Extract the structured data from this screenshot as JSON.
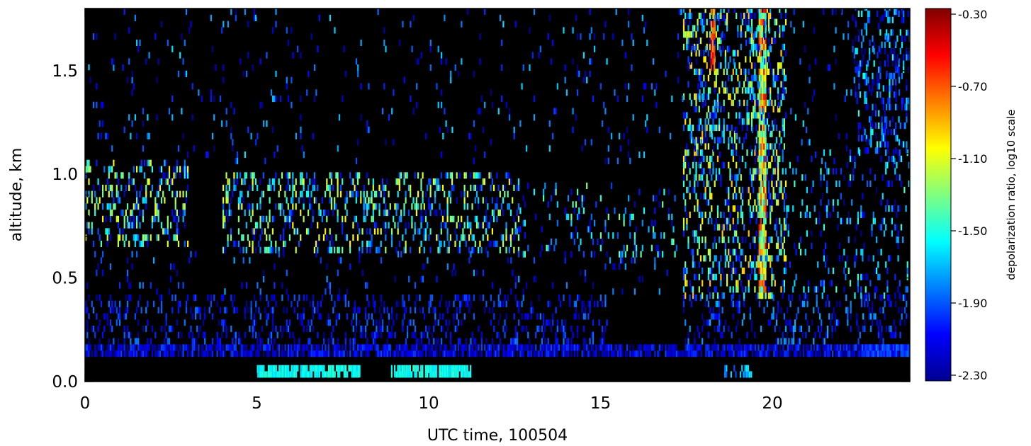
{
  "chart_data": {
    "type": "heatmap",
    "title": "",
    "xlabel": "UTC time, 100504",
    "ylabel": "altitude, km",
    "xlim": [
      0,
      24
    ],
    "ylim": [
      0,
      1.8
    ],
    "x_ticks": [
      0,
      5,
      10,
      15,
      20
    ],
    "x_tick_labels": [
      "0",
      "5",
      "10",
      "15",
      "20"
    ],
    "y_ticks": [
      0.0,
      0.5,
      1.0,
      1.5
    ],
    "y_tick_labels": [
      "0.0",
      "0.5",
      "1.0",
      "1.5"
    ],
    "colorbar": {
      "label": "depolarization ratio, log10 scale",
      "scale": "log10",
      "range": [
        -2.3,
        -0.3
      ],
      "ticks": [
        -0.3,
        -0.7,
        -1.1,
        -1.5,
        -1.9,
        -2.3
      ],
      "tick_labels": [
        "-0.30",
        "-0.70",
        "-1.10",
        "-1.50",
        "-1.90",
        "-2.30"
      ]
    },
    "background_color": "#000000",
    "regions": [
      {
        "t0": 0.0,
        "t1": 24.0,
        "h0": 0.12,
        "h1": 0.18,
        "density": 0.75,
        "v0": -2.3,
        "v1": -1.9
      },
      {
        "t0": 22.6,
        "t1": 24.0,
        "h0": 0.12,
        "h1": 0.18,
        "density": 0.95,
        "v0": -2.1,
        "v1": -1.8
      },
      {
        "t0": 0.0,
        "t1": 15.2,
        "h0": 0.18,
        "h1": 0.42,
        "density": 0.22,
        "v0": -2.3,
        "v1": -1.8
      },
      {
        "t0": 17.4,
        "t1": 24.0,
        "h0": 0.18,
        "h1": 0.42,
        "density": 0.2,
        "v0": -2.3,
        "v1": -1.7
      },
      {
        "t0": 5.0,
        "t1": 8.0,
        "h0": 0.02,
        "h1": 0.07,
        "density": 0.8,
        "v0": -1.6,
        "v1": -1.45
      },
      {
        "t0": 8.9,
        "t1": 11.2,
        "h0": 0.02,
        "h1": 0.07,
        "density": 0.85,
        "v0": -1.6,
        "v1": -1.45
      },
      {
        "t0": 18.6,
        "t1": 19.4,
        "h0": 0.02,
        "h1": 0.07,
        "density": 0.5,
        "v0": -1.9,
        "v1": -1.5
      },
      {
        "t0": 0.0,
        "t1": 3.0,
        "h0": 0.65,
        "h1": 1.05,
        "density": 0.3,
        "v0": -2.2,
        "v1": -1.0
      },
      {
        "t0": 4.0,
        "t1": 12.6,
        "h0": 0.62,
        "h1": 1.0,
        "density": 0.26,
        "v0": -2.2,
        "v1": -1.0
      },
      {
        "t0": 12.6,
        "t1": 17.2,
        "h0": 0.6,
        "h1": 0.95,
        "density": 0.12,
        "v0": -2.2,
        "v1": -1.3
      },
      {
        "t0": 17.4,
        "t1": 20.4,
        "h0": 0.4,
        "h1": 1.8,
        "density": 0.3,
        "v0": -2.2,
        "v1": -0.9
      },
      {
        "t0": 19.6,
        "t1": 19.8,
        "h0": 0.4,
        "h1": 1.8,
        "density": 0.9,
        "v0": -1.6,
        "v1": -0.5
      },
      {
        "t0": 18.2,
        "t1": 18.3,
        "h0": 1.5,
        "h1": 1.8,
        "density": 0.7,
        "v0": -0.9,
        "v1": -0.4
      },
      {
        "t0": 20.4,
        "t1": 24.0,
        "h0": 0.4,
        "h1": 1.1,
        "density": 0.14,
        "v0": -2.3,
        "v1": -1.4
      },
      {
        "t0": 22.4,
        "t1": 24.0,
        "h0": 1.1,
        "h1": 1.8,
        "density": 0.28,
        "v0": -2.3,
        "v1": -1.5
      },
      {
        "t0": 0.0,
        "t1": 24.0,
        "h0": 1.05,
        "h1": 1.8,
        "density": 0.035,
        "v0": -2.3,
        "v1": -1.6
      },
      {
        "t0": 0.0,
        "t1": 17.0,
        "h0": 0.42,
        "h1": 0.62,
        "density": 0.05,
        "v0": -2.3,
        "v1": -1.7
      }
    ]
  }
}
